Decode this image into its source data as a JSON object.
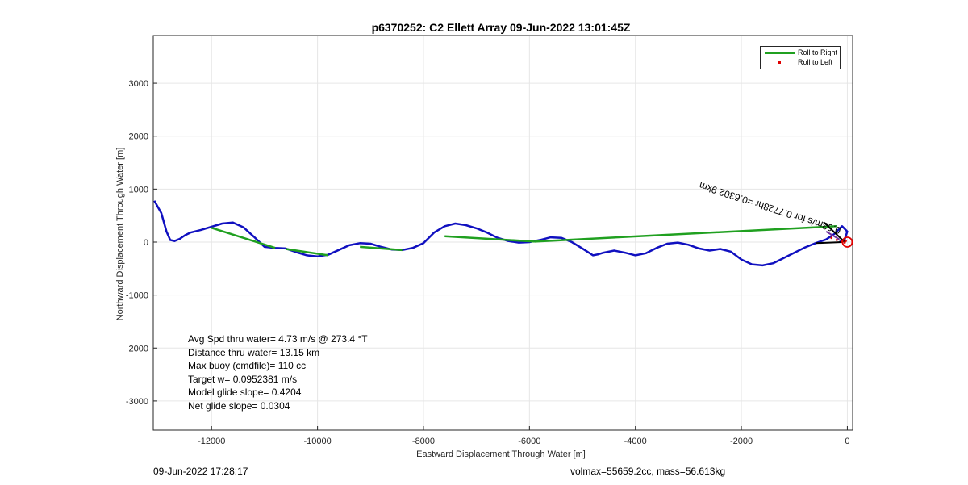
{
  "title": "p6370252: C2 Ellett Array 09-Jun-2022 13:01:45Z",
  "footer": {
    "timestamp": "09-Jun-2022 17:28:17",
    "mass_info": "volmax=55659.2cc, mass=56.613kg"
  },
  "stats": [
    "Avg Spd thru water=  4.73 m/s @ 273.4 °T",
    "Distance thru water= 13.15 km",
    "Max buoy (cmdfile)= 110 cc",
    "Target w= 0.0952381 m/s",
    "Model glide slope= 0.4204",
    "Net glide slope= 0.0304"
  ],
  "rotated_annotation": "0.63m/s for 0.7728hr =0.6302 9km",
  "colors": {
    "track": "#1010c0",
    "roll_right": "#20a020",
    "roll_left": "#e00000",
    "end_marker": "#e00000"
  },
  "chart_data": {
    "type": "line",
    "title": "p6370252: C2 Ellett Array 09-Jun-2022 13:01:45Z",
    "xlabel": "Eastward Displacement Through Water [m]",
    "ylabel": "Northward Displacement Through Water [m]",
    "xlim": [
      -13100,
      100
    ],
    "ylim": [
      -3550,
      3900
    ],
    "xticks": [
      -12000,
      -10000,
      -8000,
      -6000,
      -4000,
      -2000,
      0
    ],
    "yticks": [
      -3000,
      -2000,
      -1000,
      0,
      1000,
      2000,
      3000
    ],
    "grid": true,
    "legend": {
      "placement": "top-right",
      "entries": [
        "Roll to Right",
        "Roll to Left"
      ]
    },
    "series": [
      {
        "name": "track",
        "x": [
          -13080,
          -12950,
          -12850,
          -12780,
          -12700,
          -12600,
          -12500,
          -12400,
          -12200,
          -12000,
          -11800,
          -11600,
          -11400,
          -11200,
          -11000,
          -10800,
          -10600,
          -10400,
          -10200,
          -10000,
          -9800,
          -9600,
          -9400,
          -9200,
          -9000,
          -8800,
          -8600,
          -8400,
          -8200,
          -8000,
          -7800,
          -7600,
          -7400,
          -7200,
          -7000,
          -6800,
          -6600,
          -6400,
          -6200,
          -6000,
          -5800,
          -5600,
          -5400,
          -5200,
          -5000,
          -4800,
          -4700,
          -4600,
          -4400,
          -4200,
          -4000,
          -3800,
          -3600,
          -3400,
          -3200,
          -3000,
          -2800,
          -2600,
          -2400,
          -2200,
          -2000,
          -1800,
          -1600,
          -1400,
          -1200,
          -1000,
          -800,
          -600,
          -400,
          -250,
          -100,
          0,
          -50,
          -150
        ],
        "y": [
          780,
          550,
          200,
          40,
          20,
          60,
          130,
          180,
          230,
          290,
          350,
          370,
          280,
          100,
          -90,
          -110,
          -120,
          -190,
          -250,
          -270,
          -240,
          -150,
          -60,
          -20,
          -30,
          -90,
          -140,
          -150,
          -110,
          -20,
          180,
          300,
          350,
          320,
          260,
          180,
          80,
          20,
          -10,
          0,
          40,
          90,
          80,
          0,
          -120,
          -250,
          -230,
          -200,
          -160,
          -200,
          -250,
          -210,
          -110,
          -30,
          -10,
          -50,
          -120,
          -160,
          -130,
          -180,
          -330,
          -420,
          -440,
          -400,
          -300,
          -200,
          -100,
          -20,
          50,
          150,
          300,
          200,
          50,
          0
        ]
      },
      {
        "name": "Roll to Right",
        "segments": [
          {
            "x": [
              -12000,
              -10800
            ],
            "y": [
              270,
              -110
            ]
          },
          {
            "x": [
              -10600,
              -9800
            ],
            "y": [
              -130,
              -250
            ]
          },
          {
            "x": [
              -9200,
              -8400
            ],
            "y": [
              -90,
              -150
            ]
          },
          {
            "x": [
              -7600,
              -5900
            ],
            "y": [
              110,
              10
            ]
          },
          {
            "x": [
              -5900,
              -200
            ],
            "y": [
              10,
              300
            ]
          }
        ]
      },
      {
        "name": "Roll to Left",
        "x": [
          -300,
          -200,
          -100,
          -50,
          -30
        ],
        "y": [
          80,
          40,
          10,
          -10,
          20
        ]
      }
    ],
    "end_marker": {
      "x": 0,
      "y": 0
    }
  }
}
